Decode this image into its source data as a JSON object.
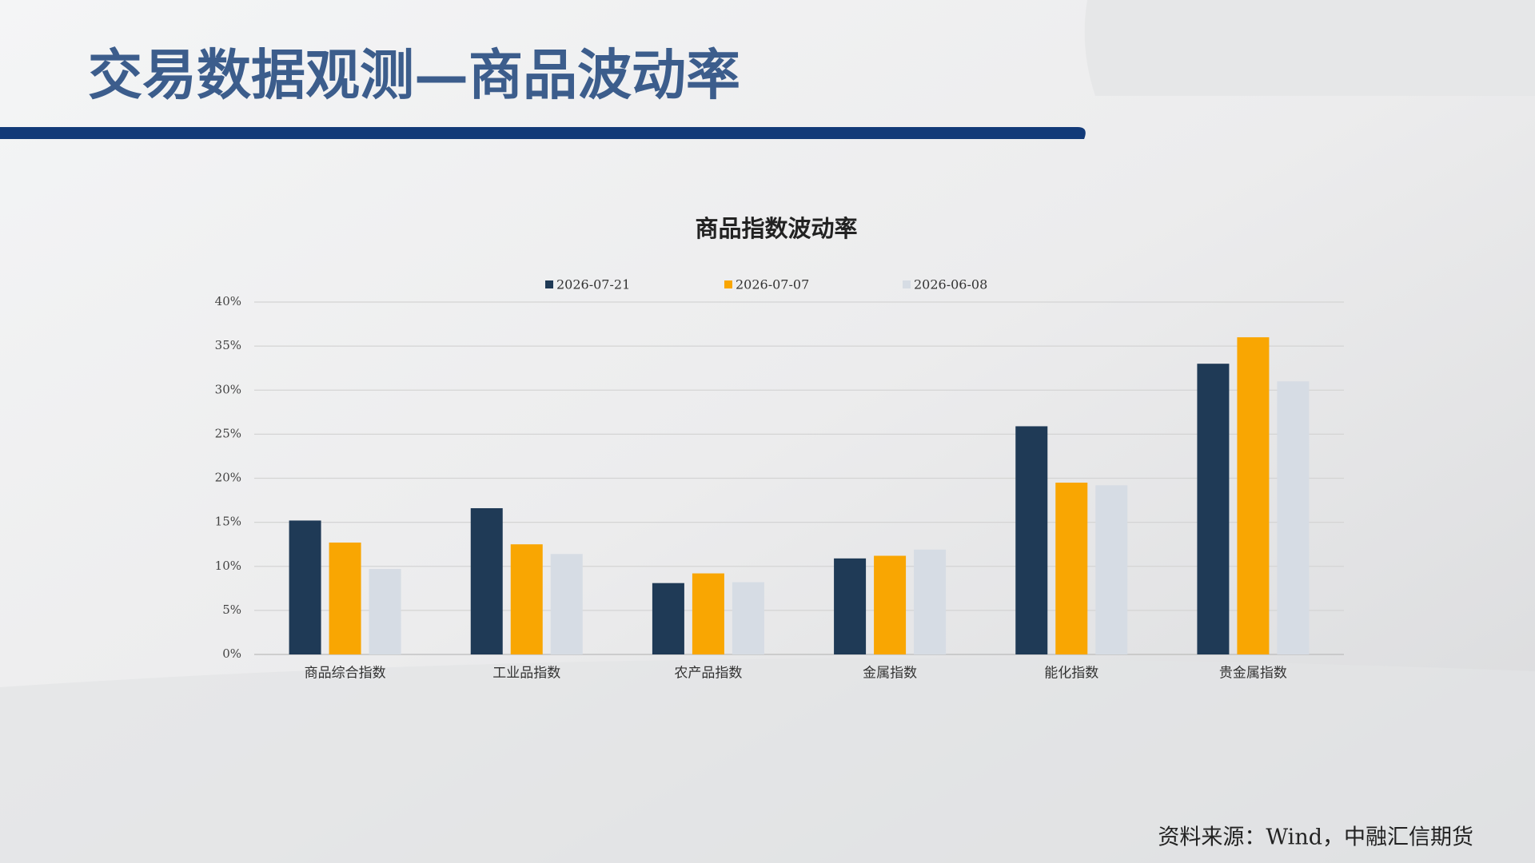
{
  "header": {
    "title": "交易数据观测—商品波动率"
  },
  "chart_data": {
    "type": "bar",
    "title": "商品指数波动率",
    "categories": [
      "商品综合指数",
      "工业品指数",
      "农产品指数",
      "金属指数",
      "能化指数",
      "贵金属指数"
    ],
    "series": [
      {
        "name": "2026-07-21",
        "color": "#1f3a56",
        "values": [
          15.2,
          16.6,
          8.1,
          10.9,
          25.9,
          33.0
        ]
      },
      {
        "name": "2026-07-07",
        "color": "#f9a602",
        "values": [
          12.7,
          12.5,
          9.2,
          11.2,
          19.5,
          36.0
        ]
      },
      {
        "name": "2026-06-08",
        "color": "#d6dce4",
        "values": [
          9.7,
          11.4,
          8.2,
          11.9,
          19.2,
          31.0
        ]
      }
    ],
    "ylim": [
      0,
      40
    ],
    "yticks": [
      {
        "value": 0,
        "label": "0%"
      },
      {
        "value": 5,
        "label": "5%"
      },
      {
        "value": 10,
        "label": "10%"
      },
      {
        "value": 15,
        "label": "15%"
      },
      {
        "value": 20,
        "label": "20%"
      },
      {
        "value": 25,
        "label": "25%"
      },
      {
        "value": 30,
        "label": "30%"
      },
      {
        "value": 35,
        "label": "35%"
      },
      {
        "value": 40,
        "label": "40%"
      }
    ],
    "grid": true,
    "legend": "top"
  },
  "footer": {
    "source": "资料来源：Wind，中融汇信期货"
  }
}
